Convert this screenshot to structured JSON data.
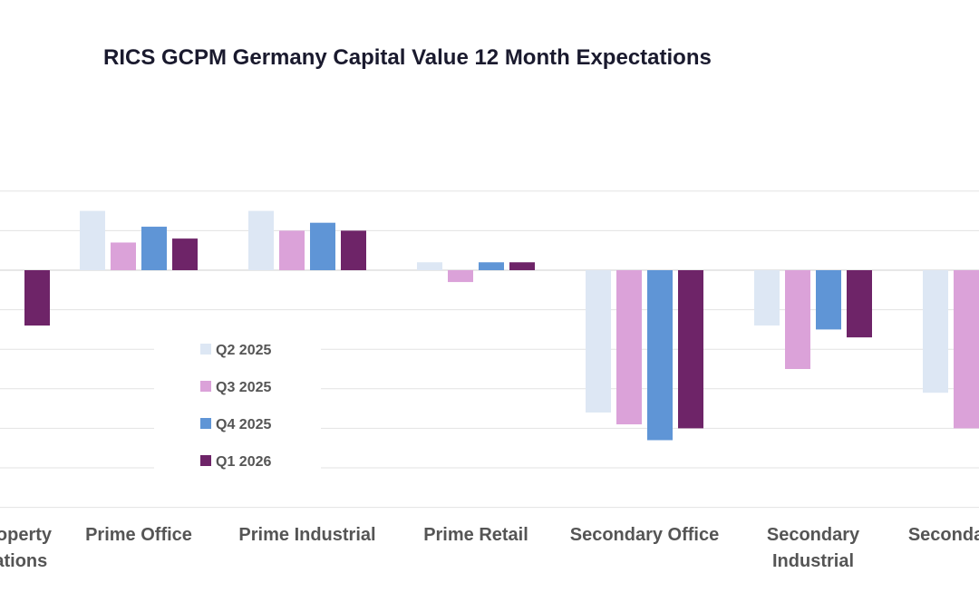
{
  "chart_data": {
    "type": "bar",
    "title": "RICS GCPM Germany Capital Value 12 Month Expectations",
    "categories": [
      [
        "Total Property",
        "Expectations"
      ],
      [
        "Prime Office"
      ],
      [
        "Prime Industrial"
      ],
      [
        "Prime Retail"
      ],
      [
        "Secondary Office"
      ],
      [
        "Secondary",
        "Industrial"
      ],
      [
        "Secondary Retail"
      ]
    ],
    "series": [
      {
        "name": "Q2 2025",
        "color": "#dde7f4",
        "values": [
          null,
          15,
          15,
          2,
          -36,
          -14,
          -31
        ]
      },
      {
        "name": "Q3 2025",
        "color": "#dba2d9",
        "values": [
          null,
          7,
          10,
          -3,
          -39,
          -25,
          -40
        ]
      },
      {
        "name": "Q4 2025",
        "color": "#5f95d6",
        "values": [
          null,
          11,
          12,
          2,
          -43,
          -15,
          null
        ]
      },
      {
        "name": "Q1 2026",
        "color": "#6e2468",
        "values": [
          -14,
          8,
          10,
          2,
          -40,
          -17,
          null
        ]
      }
    ],
    "ylim": [
      -60,
      20
    ],
    "grid": true,
    "legend_position": "inside-left"
  }
}
